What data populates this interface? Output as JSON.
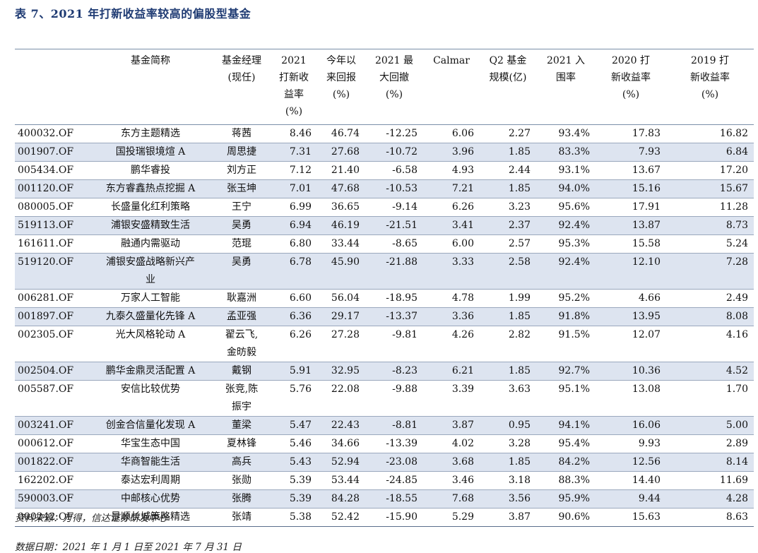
{
  "title": "表 7、2021 年打新收益率较高的偏股型基金",
  "headers": [
    "",
    "基金简称",
    "基金经理\n(现任)",
    "2021\n打新收\n益率\n(%)",
    "今年以\n来回报\n(%)",
    "2021 最\n大回撤\n(%)",
    "Calmar",
    "Q2 基金\n规模(亿)",
    "2021 入\n围率",
    "2020 打\n新收益率\n(%)",
    "2019 打\n新收益率\n(%)"
  ],
  "rows": [
    [
      "400032.OF",
      "东方主题精选",
      "蒋茜",
      "8.46",
      "46.74",
      "-12.25",
      "6.06",
      "2.27",
      "93.4%",
      "17.83",
      "16.82"
    ],
    [
      "001907.OF",
      "国投瑞银境煊 A",
      "周思捷",
      "7.31",
      "27.68",
      "-10.72",
      "3.96",
      "1.85",
      "83.3%",
      "7.93",
      "6.84"
    ],
    [
      "005434.OF",
      "鹏华睿投",
      "刘方正",
      "7.12",
      "21.40",
      "-6.58",
      "4.93",
      "2.44",
      "93.1%",
      "13.67",
      "17.20"
    ],
    [
      "001120.OF",
      "东方睿鑫热点挖掘 A",
      "张玉坤",
      "7.01",
      "47.68",
      "-10.53",
      "7.21",
      "1.85",
      "94.0%",
      "15.16",
      "15.67"
    ],
    [
      "080005.OF",
      "长盛量化红利策略",
      "王宁",
      "6.99",
      "36.65",
      "-9.14",
      "6.26",
      "3.23",
      "95.6%",
      "17.91",
      "11.28"
    ],
    [
      "519113.OF",
      "浦银安盛精致生活",
      "吴勇",
      "6.94",
      "46.19",
      "-21.51",
      "3.41",
      "2.37",
      "92.4%",
      "13.87",
      "8.73"
    ],
    [
      "161611.OF",
      "融通内需驱动",
      "范琨",
      "6.80",
      "33.44",
      "-8.65",
      "6.00",
      "2.57",
      "95.3%",
      "15.58",
      "5.24"
    ],
    [
      "519120.OF",
      "浦银安盛战略新兴产\n业",
      "吴勇",
      "6.78",
      "45.90",
      "-21.88",
      "3.33",
      "2.58",
      "92.4%",
      "12.10",
      "7.28"
    ],
    [
      "006281.OF",
      "万家人工智能",
      "耿嘉洲",
      "6.60",
      "56.04",
      "-18.95",
      "4.78",
      "1.99",
      "95.2%",
      "4.66",
      "2.49"
    ],
    [
      "001897.OF",
      "九泰久盛量化先锋 A",
      "孟亚强",
      "6.36",
      "29.17",
      "-13.37",
      "3.36",
      "1.85",
      "91.8%",
      "13.95",
      "8.08"
    ],
    [
      "002305.OF",
      "光大风格轮动 A",
      "翟云飞,\n金昉毅",
      "6.26",
      "27.28",
      "-9.81",
      "4.26",
      "2.82",
      "91.5%",
      "12.07",
      "4.16"
    ],
    [
      "002504.OF",
      "鹏华金鼎灵活配置 A",
      "戴钢",
      "5.91",
      "32.95",
      "-8.23",
      "6.21",
      "1.85",
      "92.7%",
      "10.36",
      "4.52"
    ],
    [
      "005587.OF",
      "安信比较优势",
      "张竞,陈\n振宇",
      "5.76",
      "22.08",
      "-9.88",
      "3.39",
      "3.63",
      "95.1%",
      "13.08",
      "1.70"
    ],
    [
      "003241.OF",
      "创金合信量化发现 A",
      "董梁",
      "5.47",
      "22.43",
      "-8.81",
      "3.87",
      "0.95",
      "94.1%",
      "16.06",
      "5.00"
    ],
    [
      "000612.OF",
      "华宝生态中国",
      "夏林锋",
      "5.46",
      "34.66",
      "-13.39",
      "4.02",
      "3.28",
      "95.4%",
      "9.93",
      "2.89"
    ],
    [
      "001822.OF",
      "华商智能生活",
      "高兵",
      "5.43",
      "52.94",
      "-23.08",
      "3.68",
      "1.85",
      "84.2%",
      "12.56",
      "8.14"
    ],
    [
      "162202.OF",
      "泰达宏利周期",
      "张勋",
      "5.39",
      "53.44",
      "-24.85",
      "3.46",
      "3.18",
      "88.3%",
      "14.40",
      "11.69"
    ],
    [
      "590003.OF",
      "中邮核心优势",
      "张腾",
      "5.39",
      "84.28",
      "-18.55",
      "7.68",
      "3.56",
      "95.9%",
      "9.44",
      "4.28"
    ],
    [
      "000242.OF",
      "景顺长城策略精选",
      "张靖",
      "5.38",
      "52.42",
      "-15.90",
      "5.29",
      "3.87",
      "90.6%",
      "15.63",
      "8.63"
    ]
  ],
  "source": "资料来源：万得，信达证券研发中心",
  "date_note": "数据日期：2021 年 1 月 1 日至 2021 年 7 月 31 日"
}
